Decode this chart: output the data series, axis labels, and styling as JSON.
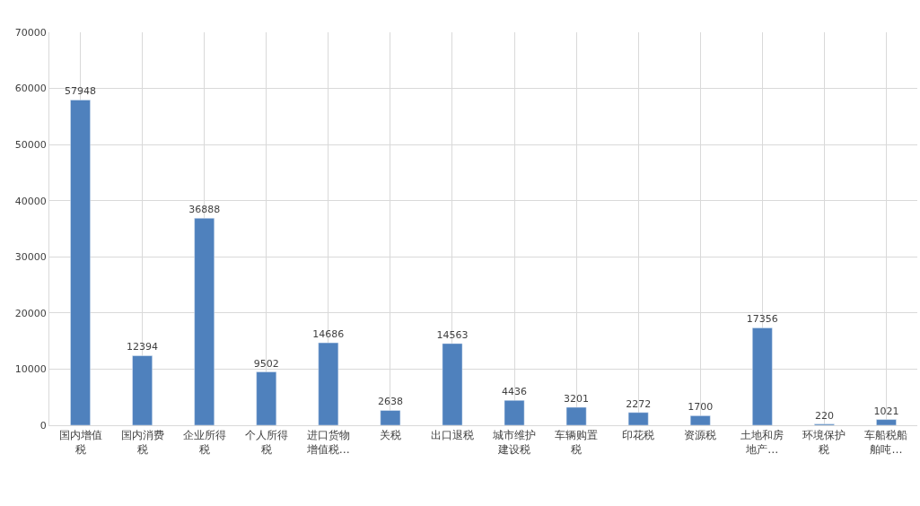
{
  "chart_data": {
    "type": "bar",
    "categories": [
      "国内增值税",
      "国内消费税",
      "企业所得税",
      "个人所得税",
      "进口货物增值税…",
      "关税",
      "出口退税",
      "城市维护建设税",
      "车辆购置税",
      "印花税",
      "资源税",
      "土地和房地产…",
      "环境保护税",
      "车船税船舶吨…"
    ],
    "values": [
      57948,
      12394,
      36888,
      9502,
      14686,
      2638,
      14563,
      4436,
      3201,
      2272,
      1700,
      17356,
      220,
      1021
    ],
    "color": "#4f81bd",
    "ylim": [
      0,
      70000
    ],
    "yticks": [
      0,
      10000,
      20000,
      30000,
      40000,
      50000,
      60000,
      70000
    ],
    "grid": true,
    "data_labels": true,
    "legend": false
  }
}
